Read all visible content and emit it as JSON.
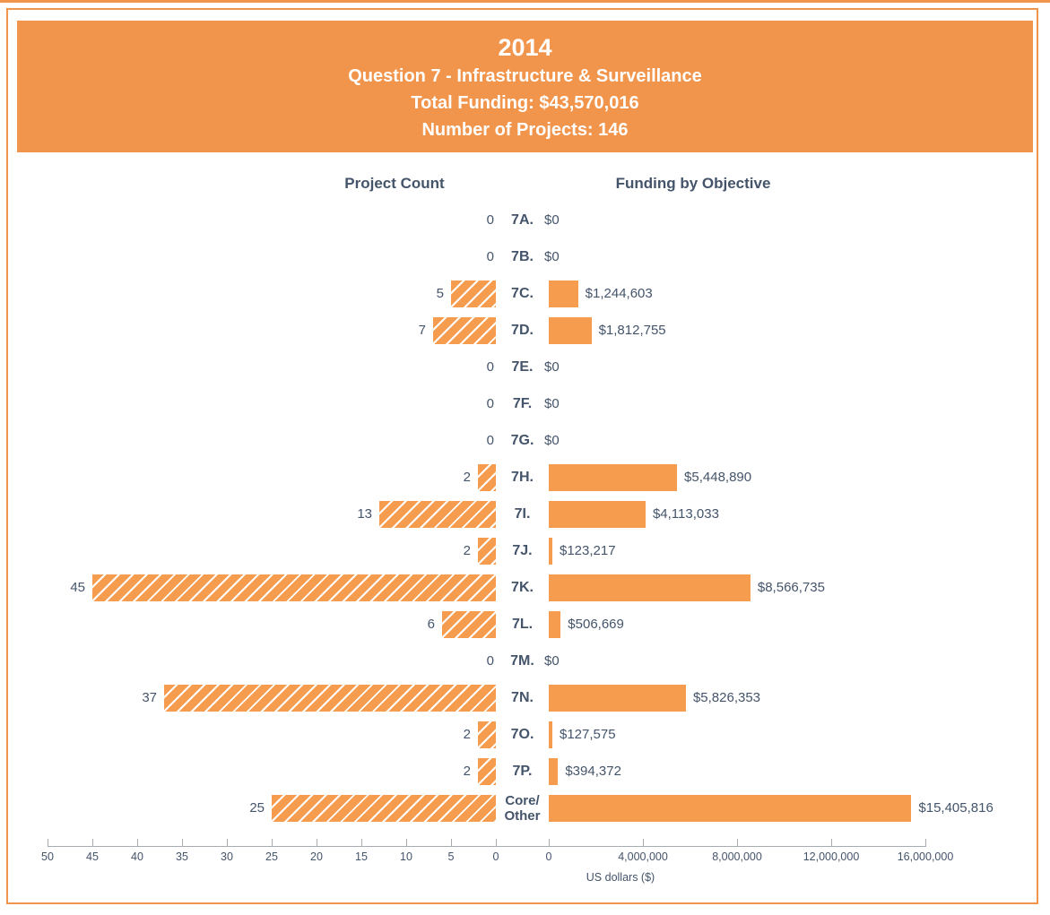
{
  "header": {
    "year": "2014",
    "title": "Question 7 - Infrastructure & Surveillance",
    "total_funding": "Total Funding: $43,570,016",
    "projects": "Number of Projects: 146"
  },
  "columns": {
    "left_title": "Project Count",
    "right_title": "Funding by Objective"
  },
  "chart_data": {
    "type": "bar",
    "subtype": "bidirectional-horizontal",
    "categories": [
      "7A.",
      "7B.",
      "7C.",
      "7D.",
      "7E.",
      "7F.",
      "7G.",
      "7H.",
      "7I.",
      "7J.",
      "7K.",
      "7L.",
      "7M.",
      "7N.",
      "7O.",
      "7P.",
      "Core/\nOther"
    ],
    "series": [
      {
        "name": "Project Count",
        "side": "left",
        "style": "hatched",
        "values": [
          0,
          0,
          5,
          7,
          0,
          0,
          0,
          2,
          13,
          2,
          45,
          6,
          0,
          37,
          2,
          2,
          25
        ]
      },
      {
        "name": "Funding by Objective",
        "side": "right",
        "style": "solid",
        "values": [
          0,
          0,
          1244603,
          1812755,
          0,
          0,
          0,
          5448890,
          4113033,
          123217,
          8566735,
          506669,
          0,
          5826353,
          127575,
          394372,
          15405816
        ],
        "value_labels": [
          "$0",
          "$0",
          "$1,244,603",
          "$1,812,755",
          "$0",
          "$0",
          "$0",
          "$5,448,890",
          "$4,113,033",
          "$123,217",
          "$8,566,735",
          "$506,669",
          "$0",
          "$5,826,353",
          "$127,575",
          "$394,372",
          "$15,405,816"
        ]
      }
    ],
    "left_axis": {
      "max": 50,
      "ticks": [
        50,
        45,
        40,
        35,
        30,
        25,
        20,
        15,
        10,
        5,
        0
      ]
    },
    "right_axis": {
      "max": 16000000,
      "ticks": [
        0,
        4000000,
        8000000,
        12000000,
        16000000
      ],
      "tick_labels": [
        "0",
        "4,000,000",
        "8,000,000",
        "12,000,000",
        "16,000,000"
      ]
    },
    "xlabel": "US dollars ($)",
    "legend_position": "none",
    "grid": false,
    "colors": {
      "banner_orange": "#F2954C",
      "bar_orange": "#F69C4F",
      "text": "#44546A",
      "axis": "#A8ACB0"
    }
  }
}
